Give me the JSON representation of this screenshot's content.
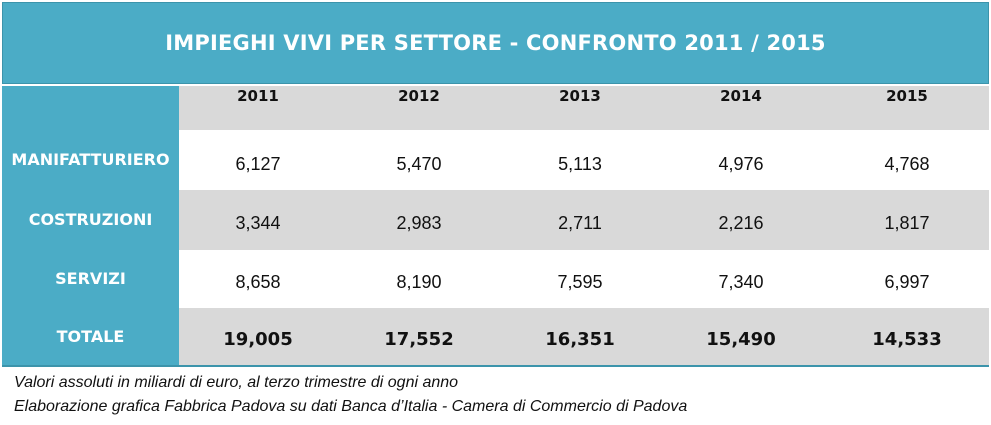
{
  "title": "IMPIEGHI VIVI PER SETTORE - CONFRONTO 2011 / 2015",
  "table": {
    "years": [
      "2011",
      "2012",
      "2013",
      "2014",
      "2015"
    ],
    "rows": [
      {
        "label": "MANIFATTURIERO",
        "values": [
          "6,127",
          "5,470",
          "5,113",
          "4,976",
          "4,768"
        ]
      },
      {
        "label": "COSTRUZIONI",
        "values": [
          "3,344",
          "2,983",
          "2,711",
          "2,216",
          "1,817"
        ]
      },
      {
        "label": "SERVIZI",
        "values": [
          "8,658",
          "8,190",
          "7,595",
          "7,340",
          "6,997"
        ]
      },
      {
        "label": "TOTALE",
        "values": [
          "19,005",
          "17,552",
          "16,351",
          "15,490",
          "14,533"
        ]
      }
    ]
  },
  "notes": {
    "line1": "Valori assoluti in miliardi di euro, al terzo trimestre di ogni anno",
    "line2": "Elaborazione grafica Fabbrica Padova su dati Banca d’Italia - Camera di Commercio di Padova"
  },
  "colors": {
    "accent": "#4bacc6",
    "band": "#d9d9d9"
  }
}
